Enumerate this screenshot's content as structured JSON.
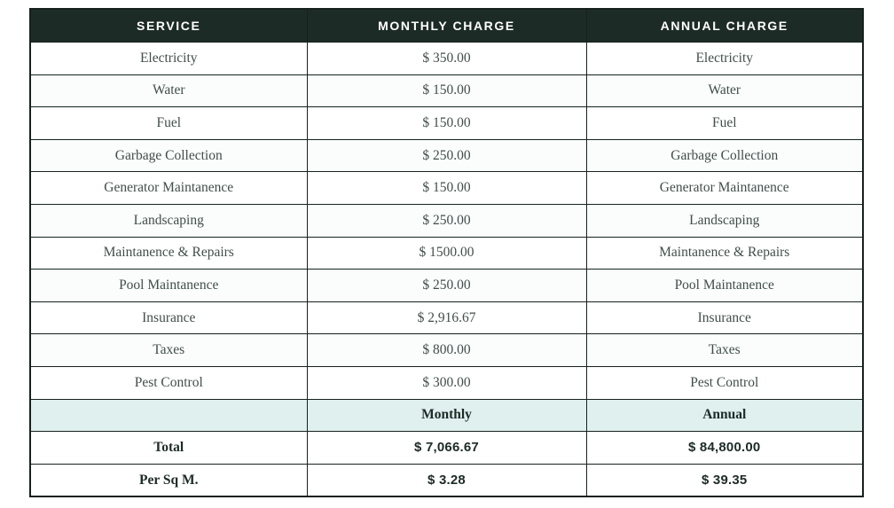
{
  "table": {
    "headers": {
      "service": "SERVICE",
      "monthly": "MONTHLY CHARGE",
      "annual": "ANNUAL CHARGE"
    },
    "rows": [
      {
        "service": "Electricity",
        "monthly": "$ 350.00",
        "annual": "Electricity"
      },
      {
        "service": "Water",
        "monthly": "$ 150.00",
        "annual": "Water"
      },
      {
        "service": "Fuel",
        "monthly": "$ 150.00",
        "annual": "Fuel"
      },
      {
        "service": "Garbage Collection",
        "monthly": "$ 250.00",
        "annual": "Garbage Collection"
      },
      {
        "service": "Generator Maintanence",
        "monthly": "$ 150.00",
        "annual": "Generator Maintanence"
      },
      {
        "service": "Landscaping",
        "monthly": "$ 250.00",
        "annual": "Landscaping"
      },
      {
        "service": "Maintanence & Repairs",
        "monthly": "$ 1500.00",
        "annual": "Maintanence & Repairs"
      },
      {
        "service": "Pool Maintanence",
        "monthly": "$ 250.00",
        "annual": "Pool Maintanence"
      },
      {
        "service": "Insurance",
        "monthly": "$ 2,916.67",
        "annual": "Insurance"
      },
      {
        "service": "Taxes",
        "monthly": "$ 800.00",
        "annual": "Taxes"
      },
      {
        "service": "Pest Control",
        "monthly": "$ 300.00",
        "annual": "Pest Control"
      }
    ],
    "period_row": {
      "service": "",
      "monthly": "Monthly",
      "annual": "Annual"
    },
    "total_row": {
      "label": "Total",
      "monthly": "$ 7,066.67",
      "annual": "$ 84,800.00"
    },
    "per_sq_m_row": {
      "label": "Per Sq M.",
      "monthly": "$ 3.28",
      "annual": "$ 39.35"
    }
  },
  "colors": {
    "header_bg": "#1d2b27",
    "header_text": "#ffffff",
    "border": "#16211e",
    "period_row_bg": "#dff0ee",
    "body_text": "#414e4b",
    "strong_text": "#1d2b28"
  }
}
